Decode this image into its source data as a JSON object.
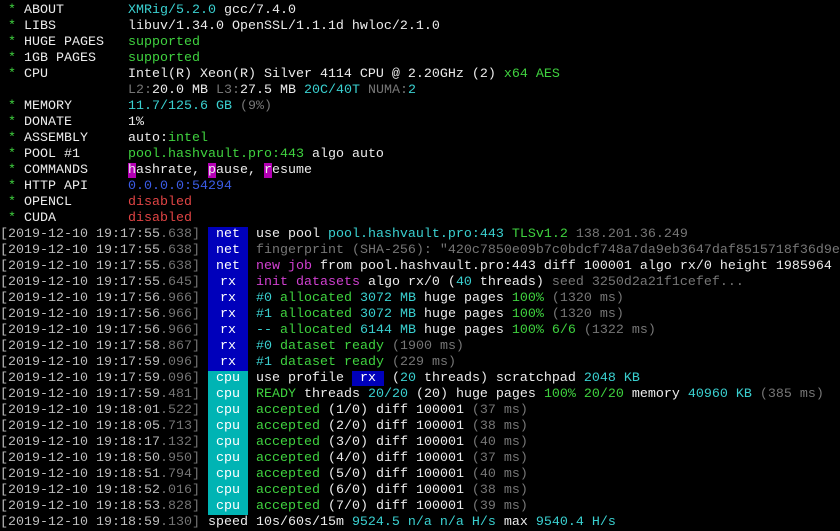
{
  "colors": {
    "cyan": "#3ad0d0",
    "green": "#3fd23f",
    "magenta": "#d040d0",
    "net_tag_bg": "#0000bb",
    "cpu_tag_bg": "#00b4b4",
    "red": "#e04444",
    "blue": "#3b5ce6"
  },
  "header": [
    {
      "label": "ABOUT",
      "value": [
        {
          "t": "XMRig/5.2.0",
          "c": "c"
        },
        {
          "t": " gcc/7.4.0",
          "c": "w"
        }
      ]
    },
    {
      "label": "LIBS",
      "value": [
        {
          "t": "libuv/1.34.0 OpenSSL/1.1.1d hwloc/2.1.0",
          "c": "w"
        }
      ]
    },
    {
      "label": "HUGE PAGES",
      "value": [
        {
          "t": "supported",
          "c": "G"
        }
      ]
    },
    {
      "label": "1GB PAGES",
      "value": [
        {
          "t": "supported",
          "c": "G"
        }
      ]
    },
    {
      "label": "CPU",
      "value": [
        {
          "t": "Intel(R) Xeon(R) Silver 4114 CPU @ 2.20GHz (2)",
          "c": "w"
        },
        {
          "t": " x64 AES",
          "c": "G"
        }
      ]
    },
    {
      "label": "",
      "value": [
        {
          "t": "L2:",
          "c": "d"
        },
        {
          "t": "20.0 MB",
          "c": "w"
        },
        {
          "t": " L3:",
          "c": "d"
        },
        {
          "t": "27.5 MB",
          "c": "w"
        },
        {
          "t": " 20C/40T",
          "c": "c"
        },
        {
          "t": " NUMA:",
          "c": "d"
        },
        {
          "t": "2",
          "c": "c"
        }
      ]
    },
    {
      "label": "MEMORY",
      "value": [
        {
          "t": "11.7/125.6 GB",
          "c": "c"
        },
        {
          "t": " (9%)",
          "c": "d"
        }
      ]
    },
    {
      "label": "DONATE",
      "value": [
        {
          "t": "1%",
          "c": "w"
        }
      ]
    },
    {
      "label": "ASSEMBLY",
      "value": [
        {
          "t": "auto:",
          "c": "w"
        },
        {
          "t": "intel",
          "c": "G"
        }
      ]
    },
    {
      "label": "POOL #1",
      "value": [
        {
          "t": "pool.hashvault.pro:443",
          "c": "G"
        },
        {
          "t": " algo auto",
          "c": "w"
        }
      ]
    },
    {
      "label": "COMMANDS",
      "value": [
        {
          "t": "h",
          "c": "hl"
        },
        {
          "t": "ashrate, ",
          "c": "w"
        },
        {
          "t": "p",
          "c": "hl"
        },
        {
          "t": "ause, ",
          "c": "w"
        },
        {
          "t": "r",
          "c": "hl"
        },
        {
          "t": "esume",
          "c": "w"
        }
      ]
    },
    {
      "label": "HTTP API",
      "value": [
        {
          "t": "0.0.0.0:54294",
          "c": "b"
        }
      ]
    },
    {
      "label": "OPENCL",
      "value": [
        {
          "t": "disabled",
          "c": "r"
        }
      ]
    },
    {
      "label": "CUDA",
      "value": [
        {
          "t": "disabled",
          "c": "r"
        }
      ]
    }
  ],
  "log": [
    {
      "ts": "2019-12-10 19:17:55.638",
      "tag": "net",
      "msg": [
        {
          "t": "use pool ",
          "c": "w"
        },
        {
          "t": "pool.hashvault.pro:443",
          "c": "c"
        },
        {
          "t": " TLSv1.2",
          "c": "G"
        },
        {
          "t": " 138.201.36.249",
          "c": "d"
        }
      ]
    },
    {
      "ts": "2019-12-10 19:17:55.638",
      "tag": "net",
      "msg": [
        {
          "t": "fingerprint (SHA-256): \"420c7850e09b7c0bdcf748a7da9eb3647daf8515718f36d9e",
          "c": "d"
        }
      ]
    },
    {
      "ts": "2019-12-10 19:17:55.638",
      "tag": "net",
      "msg": [
        {
          "t": "new job",
          "c": "m"
        },
        {
          "t": " from pool.hashvault.pro:443 diff 100001 algo rx/0 height 1985964",
          "c": "w"
        }
      ]
    },
    {
      "ts": "2019-12-10 19:17:55.645",
      "tag": "rx",
      "msg": [
        {
          "t": "init datasets",
          "c": "m"
        },
        {
          "t": " algo rx/0 (",
          "c": "w"
        },
        {
          "t": "40",
          "c": "c"
        },
        {
          "t": " threads)",
          "c": "w"
        },
        {
          "t": " seed 3250d2a21f1cefef...",
          "c": "d"
        }
      ]
    },
    {
      "ts": "2019-12-10 19:17:56.966",
      "tag": "rx",
      "msg": [
        {
          "t": "#0",
          "c": "c"
        },
        {
          "t": " allocated",
          "c": "G"
        },
        {
          "t": " 3072 MB",
          "c": "c"
        },
        {
          "t": " huge pages",
          "c": "w"
        },
        {
          "t": " 100%",
          "c": "G"
        },
        {
          "t": " (1320 ms)",
          "c": "d"
        }
      ]
    },
    {
      "ts": "2019-12-10 19:17:56.966",
      "tag": "rx",
      "msg": [
        {
          "t": "#1",
          "c": "c"
        },
        {
          "t": " allocated",
          "c": "G"
        },
        {
          "t": " 3072 MB",
          "c": "c"
        },
        {
          "t": " huge pages",
          "c": "w"
        },
        {
          "t": " 100%",
          "c": "G"
        },
        {
          "t": " (1320 ms)",
          "c": "d"
        }
      ]
    },
    {
      "ts": "2019-12-10 19:17:56.966",
      "tag": "rx",
      "msg": [
        {
          "t": "--",
          "c": "c"
        },
        {
          "t": " allocated",
          "c": "G"
        },
        {
          "t": " 6144 MB",
          "c": "c"
        },
        {
          "t": " huge pages",
          "c": "w"
        },
        {
          "t": " 100% 6/6",
          "c": "G"
        },
        {
          "t": " (1322 ms)",
          "c": "d"
        }
      ]
    },
    {
      "ts": "2019-12-10 19:17:58.867",
      "tag": "rx",
      "msg": [
        {
          "t": "#0",
          "c": "c"
        },
        {
          "t": " dataset ready",
          "c": "G"
        },
        {
          "t": " (1900 ms)",
          "c": "d"
        }
      ]
    },
    {
      "ts": "2019-12-10 19:17:59.096",
      "tag": "rx",
      "msg": [
        {
          "t": "#1",
          "c": "c"
        },
        {
          "t": " dataset ready",
          "c": "G"
        },
        {
          "t": " (229 ms)",
          "c": "d"
        }
      ]
    },
    {
      "ts": "2019-12-10 19:17:59.096",
      "tag": "cpu",
      "msg": [
        {
          "t": "use profile ",
          "c": "w"
        },
        {
          "t": " rx ",
          "c": "bx"
        },
        {
          "t": " (",
          "c": "w"
        },
        {
          "t": "20",
          "c": "c"
        },
        {
          "t": " threads) scratchpad ",
          "c": "w"
        },
        {
          "t": "2048 KB",
          "c": "c"
        }
      ]
    },
    {
      "ts": "2019-12-10 19:17:59.481",
      "tag": "cpu",
      "msg": [
        {
          "t": "READY",
          "c": "G"
        },
        {
          "t": " threads ",
          "c": "w"
        },
        {
          "t": "20/20",
          "c": "c"
        },
        {
          "t": " (20) huge pages ",
          "c": "w"
        },
        {
          "t": "100% 20/20",
          "c": "G"
        },
        {
          "t": " memory ",
          "c": "w"
        },
        {
          "t": "40960 KB",
          "c": "c"
        },
        {
          "t": " (385 ms)",
          "c": "d"
        }
      ]
    },
    {
      "ts": "2019-12-10 19:18:01.522",
      "tag": "cpu",
      "msg": [
        {
          "t": "accepted",
          "c": "G"
        },
        {
          "t": " (1/0) diff 100001",
          "c": "w"
        },
        {
          "t": " (37 ms)",
          "c": "d"
        }
      ]
    },
    {
      "ts": "2019-12-10 19:18:05.713",
      "tag": "cpu",
      "msg": [
        {
          "t": "accepted",
          "c": "G"
        },
        {
          "t": " (2/0) diff 100001",
          "c": "w"
        },
        {
          "t": " (38 ms)",
          "c": "d"
        }
      ]
    },
    {
      "ts": "2019-12-10 19:18:17.132",
      "tag": "cpu",
      "msg": [
        {
          "t": "accepted",
          "c": "G"
        },
        {
          "t": " (3/0) diff 100001",
          "c": "w"
        },
        {
          "t": " (40 ms)",
          "c": "d"
        }
      ]
    },
    {
      "ts": "2019-12-10 19:18:50.950",
      "tag": "cpu",
      "msg": [
        {
          "t": "accepted",
          "c": "G"
        },
        {
          "t": " (4/0) diff 100001",
          "c": "w"
        },
        {
          "t": " (37 ms)",
          "c": "d"
        }
      ]
    },
    {
      "ts": "2019-12-10 19:18:51.794",
      "tag": "cpu",
      "msg": [
        {
          "t": "accepted",
          "c": "G"
        },
        {
          "t": " (5/0) diff 100001",
          "c": "w"
        },
        {
          "t": " (40 ms)",
          "c": "d"
        }
      ]
    },
    {
      "ts": "2019-12-10 19:18:52.016",
      "tag": "cpu",
      "msg": [
        {
          "t": "accepted",
          "c": "G"
        },
        {
          "t": " (6/0) diff 100001",
          "c": "w"
        },
        {
          "t": " (38 ms)",
          "c": "d"
        }
      ]
    },
    {
      "ts": "2019-12-10 19:18:53.828",
      "tag": "cpu",
      "msg": [
        {
          "t": "accepted",
          "c": "G"
        },
        {
          "t": " (7/0) diff 100001",
          "c": "w"
        },
        {
          "t": " (39 ms)",
          "c": "d"
        }
      ]
    },
    {
      "ts": "2019-12-10 19:18:59.130",
      "tag": "",
      "msg": [
        {
          "t": "speed 10s/60s/15m ",
          "c": "w"
        },
        {
          "t": "9524.5 n/a n/a H/s",
          "c": "c"
        },
        {
          "t": " max ",
          "c": "w"
        },
        {
          "t": "9540.4 H/s",
          "c": "c"
        }
      ]
    }
  ]
}
